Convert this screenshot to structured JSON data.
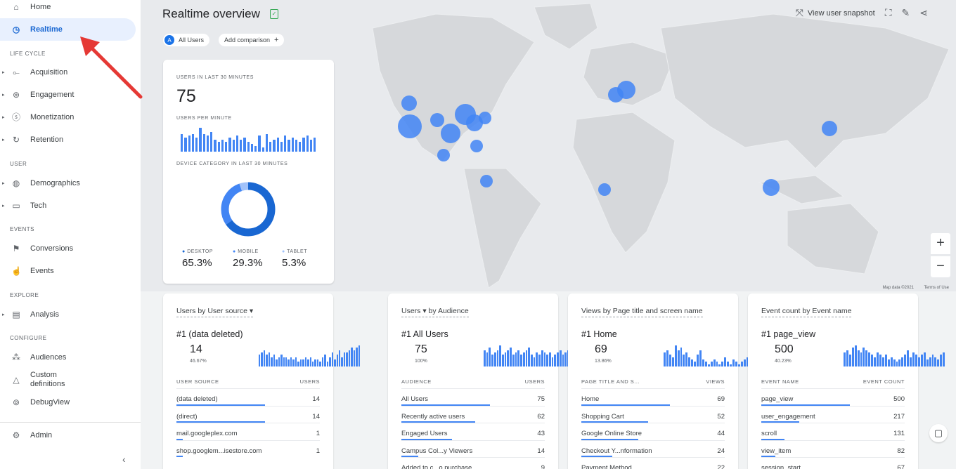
{
  "sidebar": {
    "home": "Home",
    "realtime": "Realtime",
    "sections": {
      "lifecycle": "LIFE CYCLE",
      "user": "USER",
      "events": "EVENTS",
      "explore": "EXPLORE",
      "configure": "CONFIGURE"
    },
    "lifecycle_items": [
      "Acquisition",
      "Engagement",
      "Monetization",
      "Retention"
    ],
    "user_items": [
      "Demographics",
      "Tech"
    ],
    "event_items": [
      "Conversions",
      "Events"
    ],
    "explore_items": [
      "Analysis"
    ],
    "configure_items": [
      "Audiences",
      "Custom definitions",
      "DebugView"
    ],
    "admin": "Admin"
  },
  "header": {
    "title": "Realtime overview",
    "all_users_badge": "A",
    "all_users": "All Users",
    "add_comparison": "Add comparison",
    "view_snapshot": "View user snapshot"
  },
  "map": {
    "zoom_in": "+",
    "zoom_out": "−",
    "attribution": "Map data ©2021",
    "terms": "Terms of Use"
  },
  "realtime_card": {
    "users_label": "USERS IN LAST 30 MINUTES",
    "users_value": "75",
    "per_minute_label": "USERS PER MINUTE",
    "per_minute_bars": [
      9,
      7,
      8,
      9,
      7,
      12,
      9,
      8,
      10,
      6,
      5,
      6,
      5,
      7,
      6,
      8,
      6,
      7,
      5,
      4,
      3,
      8,
      2,
      9,
      5,
      6,
      7,
      5,
      8,
      6,
      7,
      6,
      5,
      7,
      8,
      6,
      7
    ],
    "device_label": "DEVICE CATEGORY IN LAST 30 MINUTES",
    "devices": [
      {
        "name": "DESKTOP",
        "value": "65.3%",
        "share": 65.3,
        "color": "#1967d2"
      },
      {
        "name": "MOBILE",
        "value": "29.3%",
        "share": 29.3,
        "color": "#4285f4"
      },
      {
        "name": "TABLET",
        "value": "5.3%",
        "share": 5.3,
        "color": "#a1c2fa"
      }
    ]
  },
  "cards": [
    {
      "title": "Users by User source ▾",
      "top": "#1  (data deleted)",
      "top_value": "14",
      "top_pct": "46.67%",
      "spark": [
        5,
        6,
        7,
        5,
        6,
        4,
        5,
        3,
        4,
        5,
        4,
        4,
        3,
        4,
        3,
        4,
        2,
        3,
        3,
        4,
        3,
        4,
        2,
        3,
        3,
        2,
        4,
        5,
        2,
        4,
        6,
        3,
        5,
        7,
        4,
        6,
        6,
        7,
        8,
        7,
        8,
        9
      ],
      "col1": "USER SOURCE",
      "col2": "USERS",
      "rows": [
        {
          "name": "(data deleted)",
          "value": "14",
          "bar": 1.0
        },
        {
          "name": "(direct)",
          "value": "14",
          "bar": 1.0
        },
        {
          "name": "mail.googleplex.com",
          "value": "1",
          "bar": 0.07
        },
        {
          "name": "shop.googlem...isestore.com",
          "value": "1",
          "bar": 0.07
        }
      ]
    },
    {
      "title": "Users ▾  by Audience",
      "top": "#1  All Users",
      "top_value": "75",
      "top_pct": "100%",
      "spark": [
        7,
        6,
        8,
        5,
        6,
        7,
        9,
        5,
        6,
        7,
        8,
        5,
        6,
        7,
        5,
        6,
        7,
        8,
        5,
        4,
        6,
        5,
        7,
        6,
        5,
        6,
        4,
        5,
        6,
        7,
        5,
        6,
        7,
        8,
        5,
        6,
        7,
        8,
        9
      ],
      "col1": "AUDIENCE",
      "col2": "USERS",
      "rows": [
        {
          "name": "All Users",
          "value": "75",
          "bar": 1.0
        },
        {
          "name": "Recently active users",
          "value": "62",
          "bar": 0.83
        },
        {
          "name": "Engaged Users",
          "value": "43",
          "bar": 0.57
        },
        {
          "name": "Campus Col...y Viewers",
          "value": "14",
          "bar": 0.19
        },
        {
          "name": "Added to c...o purchase",
          "value": "9",
          "bar": 0.12
        }
      ]
    },
    {
      "title": "Views by Page title and screen name",
      "top": "#1  Home",
      "top_value": "69",
      "top_pct": "13.86%",
      "spark": [
        6,
        7,
        5,
        4,
        9,
        7,
        8,
        5,
        6,
        4,
        3,
        2,
        5,
        7,
        3,
        2,
        1,
        2,
        3,
        2,
        1,
        2,
        4,
        2,
        1,
        3,
        2,
        1,
        2,
        3,
        4,
        5,
        4,
        3,
        5,
        4,
        6
      ],
      "col1": "PAGE TITLE AND S...",
      "col2": "VIEWS",
      "rows": [
        {
          "name": "Home",
          "value": "69",
          "bar": 1.0
        },
        {
          "name": "Shopping Cart",
          "value": "52",
          "bar": 0.75
        },
        {
          "name": "Google Online Store",
          "value": "44",
          "bar": 0.64
        },
        {
          "name": "Checkout Y...nformation",
          "value": "24",
          "bar": 0.35
        },
        {
          "name": "Payment Method",
          "value": "22",
          "bar": 0.32
        }
      ]
    },
    {
      "title": "Event count by Event name",
      "top": "#1  page_view",
      "top_value": "500",
      "top_pct": "40.23%",
      "spark": [
        6,
        7,
        5,
        8,
        9,
        7,
        6,
        8,
        7,
        6,
        5,
        4,
        6,
        5,
        4,
        5,
        3,
        4,
        3,
        2,
        3,
        4,
        5,
        7,
        4,
        6,
        5,
        4,
        5,
        6,
        3,
        4,
        5,
        4,
        3,
        5,
        6
      ],
      "col1": "EVENT NAME",
      "col2": "EVENT COUNT",
      "rows": [
        {
          "name": "page_view",
          "value": "500",
          "bar": 1.0
        },
        {
          "name": "user_engagement",
          "value": "217",
          "bar": 0.43
        },
        {
          "name": "scroll",
          "value": "131",
          "bar": 0.26
        },
        {
          "name": "view_item",
          "value": "82",
          "bar": 0.16
        },
        {
          "name": "session_start",
          "value": "67",
          "bar": 0.13
        }
      ]
    }
  ],
  "colors": {
    "accent": "#1a73e8",
    "bar": "#4285f4",
    "map_bg": "#e8eaed",
    "land": "#d2d4d7",
    "dot": "#4285f4",
    "annotation": "#e53935"
  }
}
